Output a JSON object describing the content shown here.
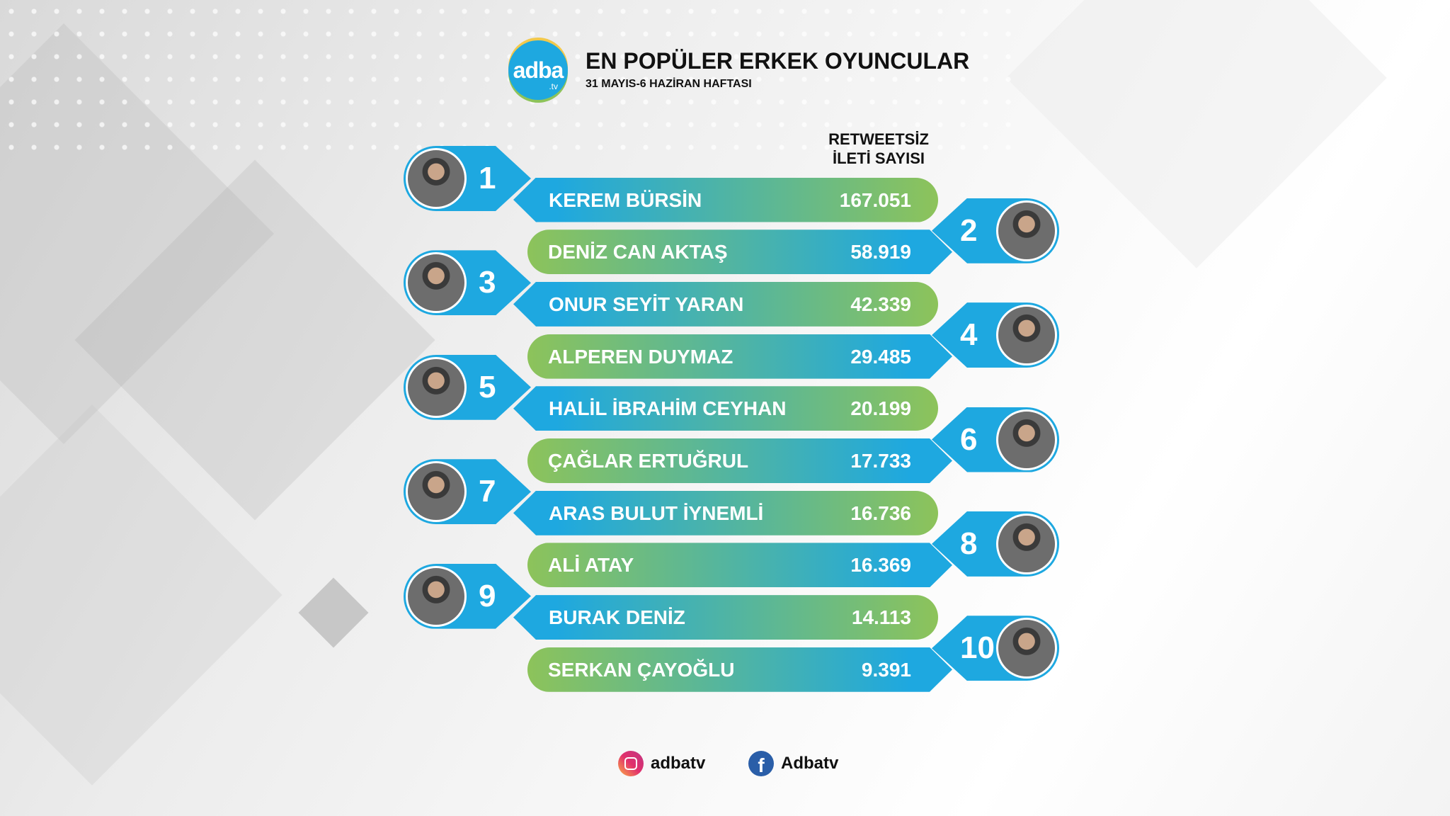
{
  "header": {
    "logo_text": "adba",
    "logo_sub": ".tv",
    "title": "EN POPÜLER ERKEK OYUNCULAR",
    "subtitle": "31 MAYIS-6 HAZİRAN HAFTASI"
  },
  "column_header": {
    "line1": "RETWEETSİZ",
    "line2": "İLETİ SAYISI"
  },
  "ranking": [
    {
      "rank": "1",
      "name": "KEREM BÜRSİN",
      "value": "167.051"
    },
    {
      "rank": "2",
      "name": "DENİZ CAN AKTAŞ",
      "value": "58.919"
    },
    {
      "rank": "3",
      "name": "ONUR SEYİT YARAN",
      "value": "42.339"
    },
    {
      "rank": "4",
      "name": "ALPEREN DUYMAZ",
      "value": "29.485"
    },
    {
      "rank": "5",
      "name": "HALİL İBRAHİM CEYHAN",
      "value": "20.199"
    },
    {
      "rank": "6",
      "name": "ÇAĞLAR ERTUĞRUL",
      "value": "17.733"
    },
    {
      "rank": "7",
      "name": "ARAS BULUT İYNEMLİ",
      "value": "16.736"
    },
    {
      "rank": "8",
      "name": "ALİ ATAY",
      "value": "16.369"
    },
    {
      "rank": "9",
      "name": "BURAK DENİZ",
      "value": "14.113"
    },
    {
      "rank": "10",
      "name": "SERKAN ÇAYOĞLU",
      "value": "9.391"
    }
  ],
  "footer": {
    "instagram": "adbatv",
    "facebook": "Adbatv"
  },
  "colors": {
    "blue": "#1ea8e0",
    "green": "#8dc35a"
  }
}
